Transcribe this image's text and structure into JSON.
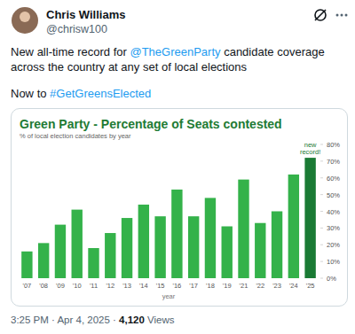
{
  "tweet": {
    "name": "Chris Williams",
    "handle": "@chrisw100",
    "text": "New all-time record for @TheGreenParty candidate coverage across the country at any set of local elections",
    "text2": "Now to #GetGreensElected",
    "timestamp": "3:25 PM · Apr 4, 2025 ·",
    "views": "4,120",
    "views_label": "Views"
  },
  "chart_data": {
    "type": "bar",
    "title": "Green Party - Percentage of Seats contested",
    "subtitle": "% of local election candidates by year",
    "x_label": "year",
    "annotation": "new record!",
    "categories": [
      "'07",
      "'08",
      "'09",
      "'10",
      "'11",
      "'12",
      "'13",
      "'14",
      "'15",
      "'16",
      "'17",
      "'18",
      "'19",
      "'21",
      "'22",
      "'23",
      "'24",
      "'25"
    ],
    "values": [
      16,
      21,
      32,
      41,
      18,
      27,
      36,
      44,
      37,
      53,
      37,
      48,
      31,
      59,
      33,
      40,
      62,
      72
    ],
    "colors": [
      "#34b24a",
      "#34b24a",
      "#34b24a",
      "#34b24a",
      "#34b24a",
      "#34b24a",
      "#34b24a",
      "#34b24a",
      "#34b24a",
      "#34b24a",
      "#34b24a",
      "#34b24a",
      "#34b24a",
      "#34b24a",
      "#34b24a",
      "#34b24a",
      "#34b24a",
      "#1a7a34"
    ],
    "ylim": [
      0,
      80
    ],
    "yticks": [
      {
        "value": 0,
        "label": "0%"
      },
      {
        "value": 10,
        "label": "10%"
      },
      {
        "value": 20,
        "label": "20%"
      },
      {
        "value": 30,
        "label": "30%"
      },
      {
        "value": 40,
        "label": "40%"
      },
      {
        "value": 50,
        "label": "50%"
      },
      {
        "value": 60,
        "label": "60%"
      },
      {
        "value": 70,
        "label": "70%"
      },
      {
        "value": 80,
        "label": "80%"
      }
    ],
    "grid": false
  }
}
